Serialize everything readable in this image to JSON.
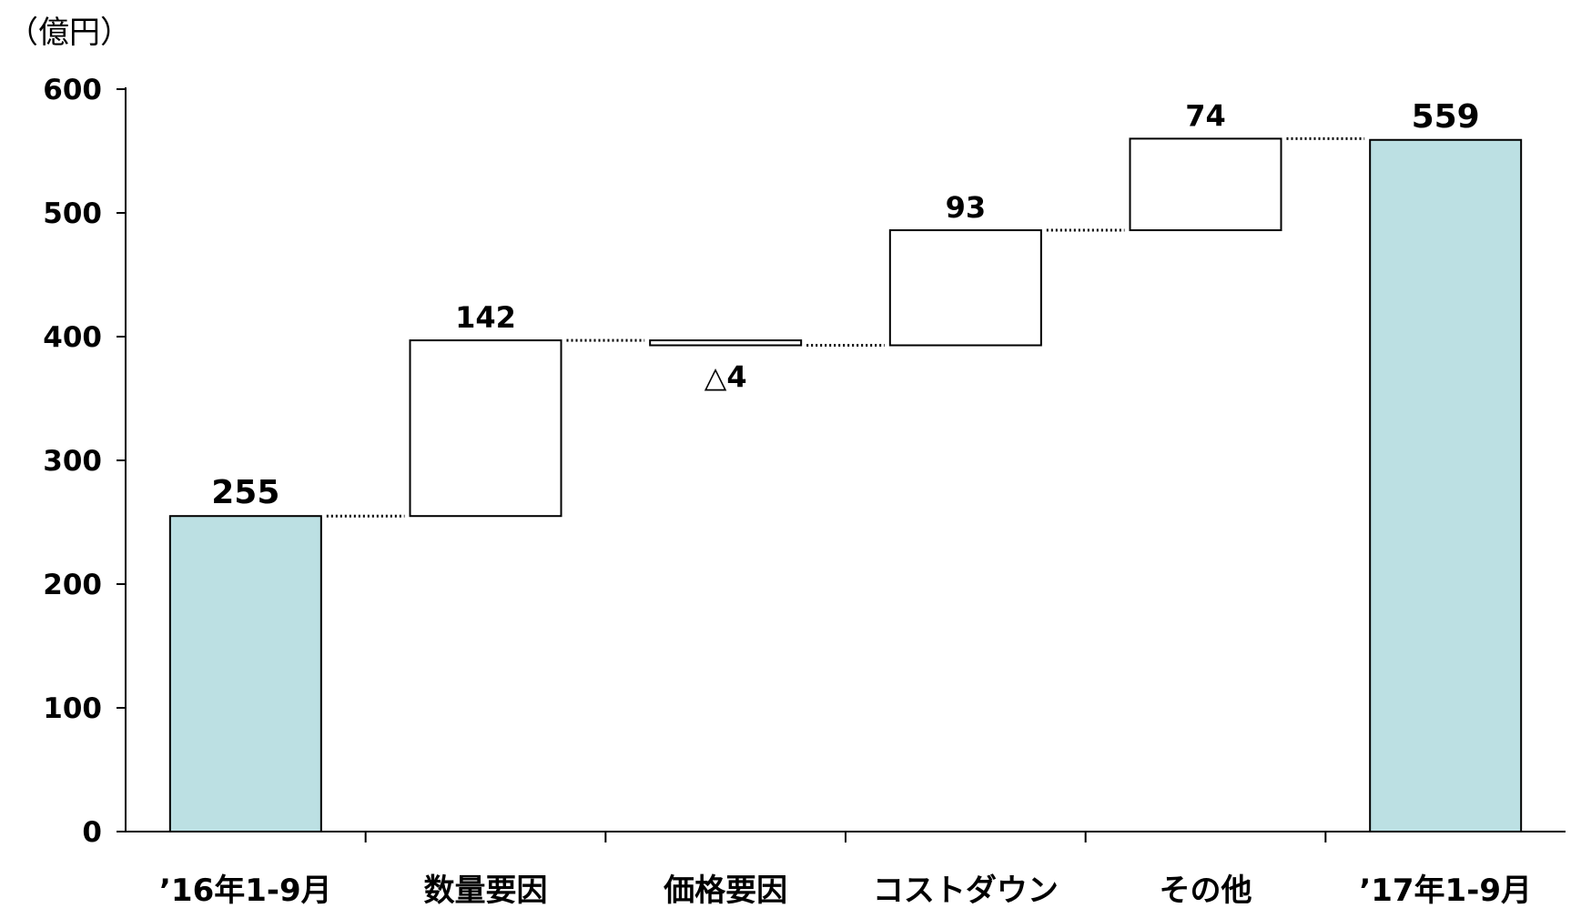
{
  "chart_data": {
    "type": "bar",
    "variant": "waterfall",
    "unit_label": "（億円）",
    "categories": [
      "’16年1-9月",
      "数量要因",
      "価格要因",
      "コストダウン",
      "その他",
      "’17年1-9月"
    ],
    "bars": [
      {
        "category": "’16年1-9月",
        "kind": "total",
        "base": 0,
        "value": 255,
        "label": "255"
      },
      {
        "category": "数量要因",
        "kind": "delta",
        "base": 255,
        "value": 142,
        "label": "142"
      },
      {
        "category": "価格要因",
        "kind": "delta",
        "base": 397,
        "value": -4,
        "label": "△4"
      },
      {
        "category": "コストダウン",
        "kind": "delta",
        "base": 393,
        "value": 93,
        "label": "93"
      },
      {
        "category": "その他",
        "kind": "delta",
        "base": 486,
        "value": 74,
        "label": "74"
      },
      {
        "category": "’17年1-9月",
        "kind": "total",
        "base": 0,
        "value": 559,
        "label": "559"
      }
    ],
    "yticks": [
      0,
      100,
      200,
      300,
      400,
      500,
      600
    ],
    "ylim": [
      0,
      600
    ],
    "grid": false,
    "legend": "none",
    "colors": {
      "total": "#bce0e3",
      "delta": "#ffffff",
      "stroke": "#000000"
    }
  }
}
